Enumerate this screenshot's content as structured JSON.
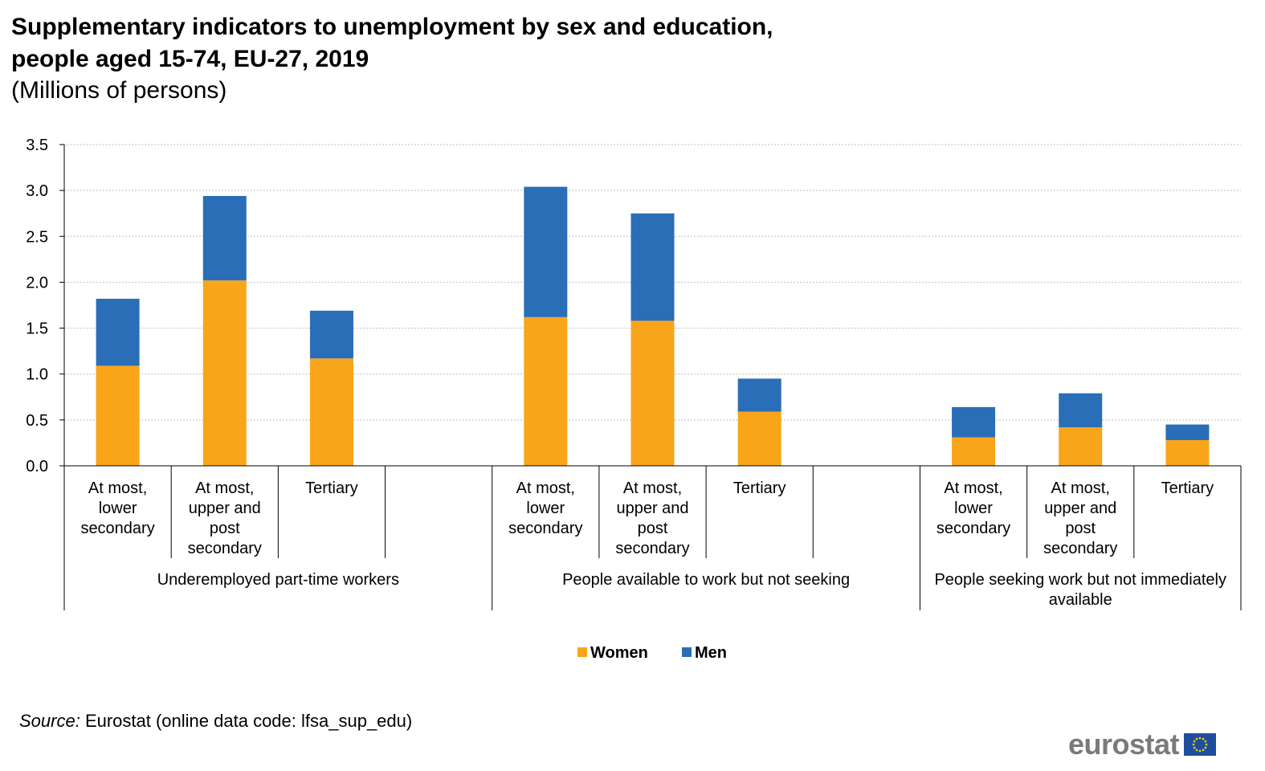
{
  "title_line1": "Supplementary indicators to unemployment by sex and education,",
  "title_line2": "people aged 15-74, EU-27, 2019",
  "subtitle": "(Millions of persons)",
  "source_label": "Source:",
  "source_text": " Eurostat (online data code: lfsa_sup_edu)",
  "logo_text": "eurostat",
  "colors": {
    "women": "#F9A51A",
    "men": "#2A6EB7",
    "grid": "#bfbfbf",
    "axis": "#000000"
  },
  "chart_data": {
    "type": "bar",
    "stacked": true,
    "title": "Supplementary indicators to unemployment by sex and education, people aged 15-74, EU-27, 2019",
    "subtitle": "(Millions of persons)",
    "ylim": [
      0,
      3.5
    ],
    "yticks": [
      "0.0",
      "0.5",
      "1.0",
      "1.5",
      "2.0",
      "2.5",
      "3.0",
      "3.5"
    ],
    "grid": true,
    "legend_position": "bottom-center",
    "groups": [
      "Underemployed part-time workers",
      "People available to work but not seeking",
      "People seeking work but not immediately available"
    ],
    "categories": [
      "At most, lower secondary",
      "At most, upper and post secondary",
      "Tertiary",
      "",
      "At most, lower secondary",
      "At most, upper and post secondary",
      "Tertiary",
      "",
      "At most, lower secondary",
      "At most, upper and post secondary",
      "Tertiary"
    ],
    "category_lines": [
      [
        "At most,",
        "lower",
        "secondary"
      ],
      [
        "At most,",
        "upper and",
        "post",
        "secondary"
      ],
      [
        "Tertiary"
      ],
      [],
      [
        "At most,",
        "lower",
        "secondary"
      ],
      [
        "At most,",
        "upper and",
        "post",
        "secondary"
      ],
      [
        "Tertiary"
      ],
      [],
      [
        "At most,",
        "lower",
        "secondary"
      ],
      [
        "At most,",
        "upper and",
        "post",
        "secondary"
      ],
      [
        "Tertiary"
      ]
    ],
    "group_lines": [
      [
        "Underemployed part-time workers"
      ],
      [
        "People available to work but not seeking"
      ],
      [
        "People seeking work but not immediately",
        "available"
      ]
    ],
    "series": [
      {
        "name": "Women",
        "values": [
          1.09,
          2.02,
          1.17,
          null,
          1.62,
          1.58,
          0.59,
          null,
          0.31,
          0.42,
          0.28
        ]
      },
      {
        "name": "Men",
        "values": [
          0.73,
          0.92,
          0.52,
          null,
          1.42,
          1.17,
          0.36,
          null,
          0.33,
          0.37,
          0.17
        ]
      }
    ]
  }
}
